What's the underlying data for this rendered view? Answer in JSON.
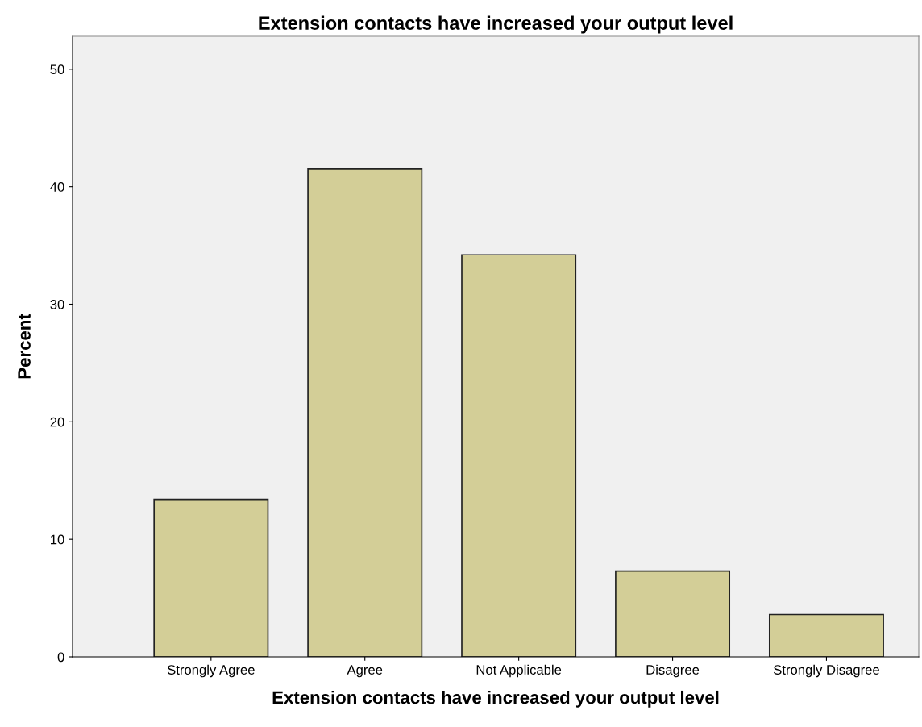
{
  "chart_data": {
    "type": "bar",
    "title": "Extension contacts have increased your output level",
    "xlabel": "Extension contacts have increased your output level",
    "ylabel": "Percent",
    "categories": [
      "Strongly Agree",
      "Agree",
      "Not Applicable",
      "Disagree",
      "Strongly Disagree"
    ],
    "values": [
      13.4,
      41.5,
      34.2,
      7.3,
      3.6
    ],
    "color": "#d3ce97",
    "ylim": [
      0,
      52.8
    ],
    "yticks": [
      0,
      10,
      20,
      30,
      40,
      50
    ],
    "grid": false
  }
}
